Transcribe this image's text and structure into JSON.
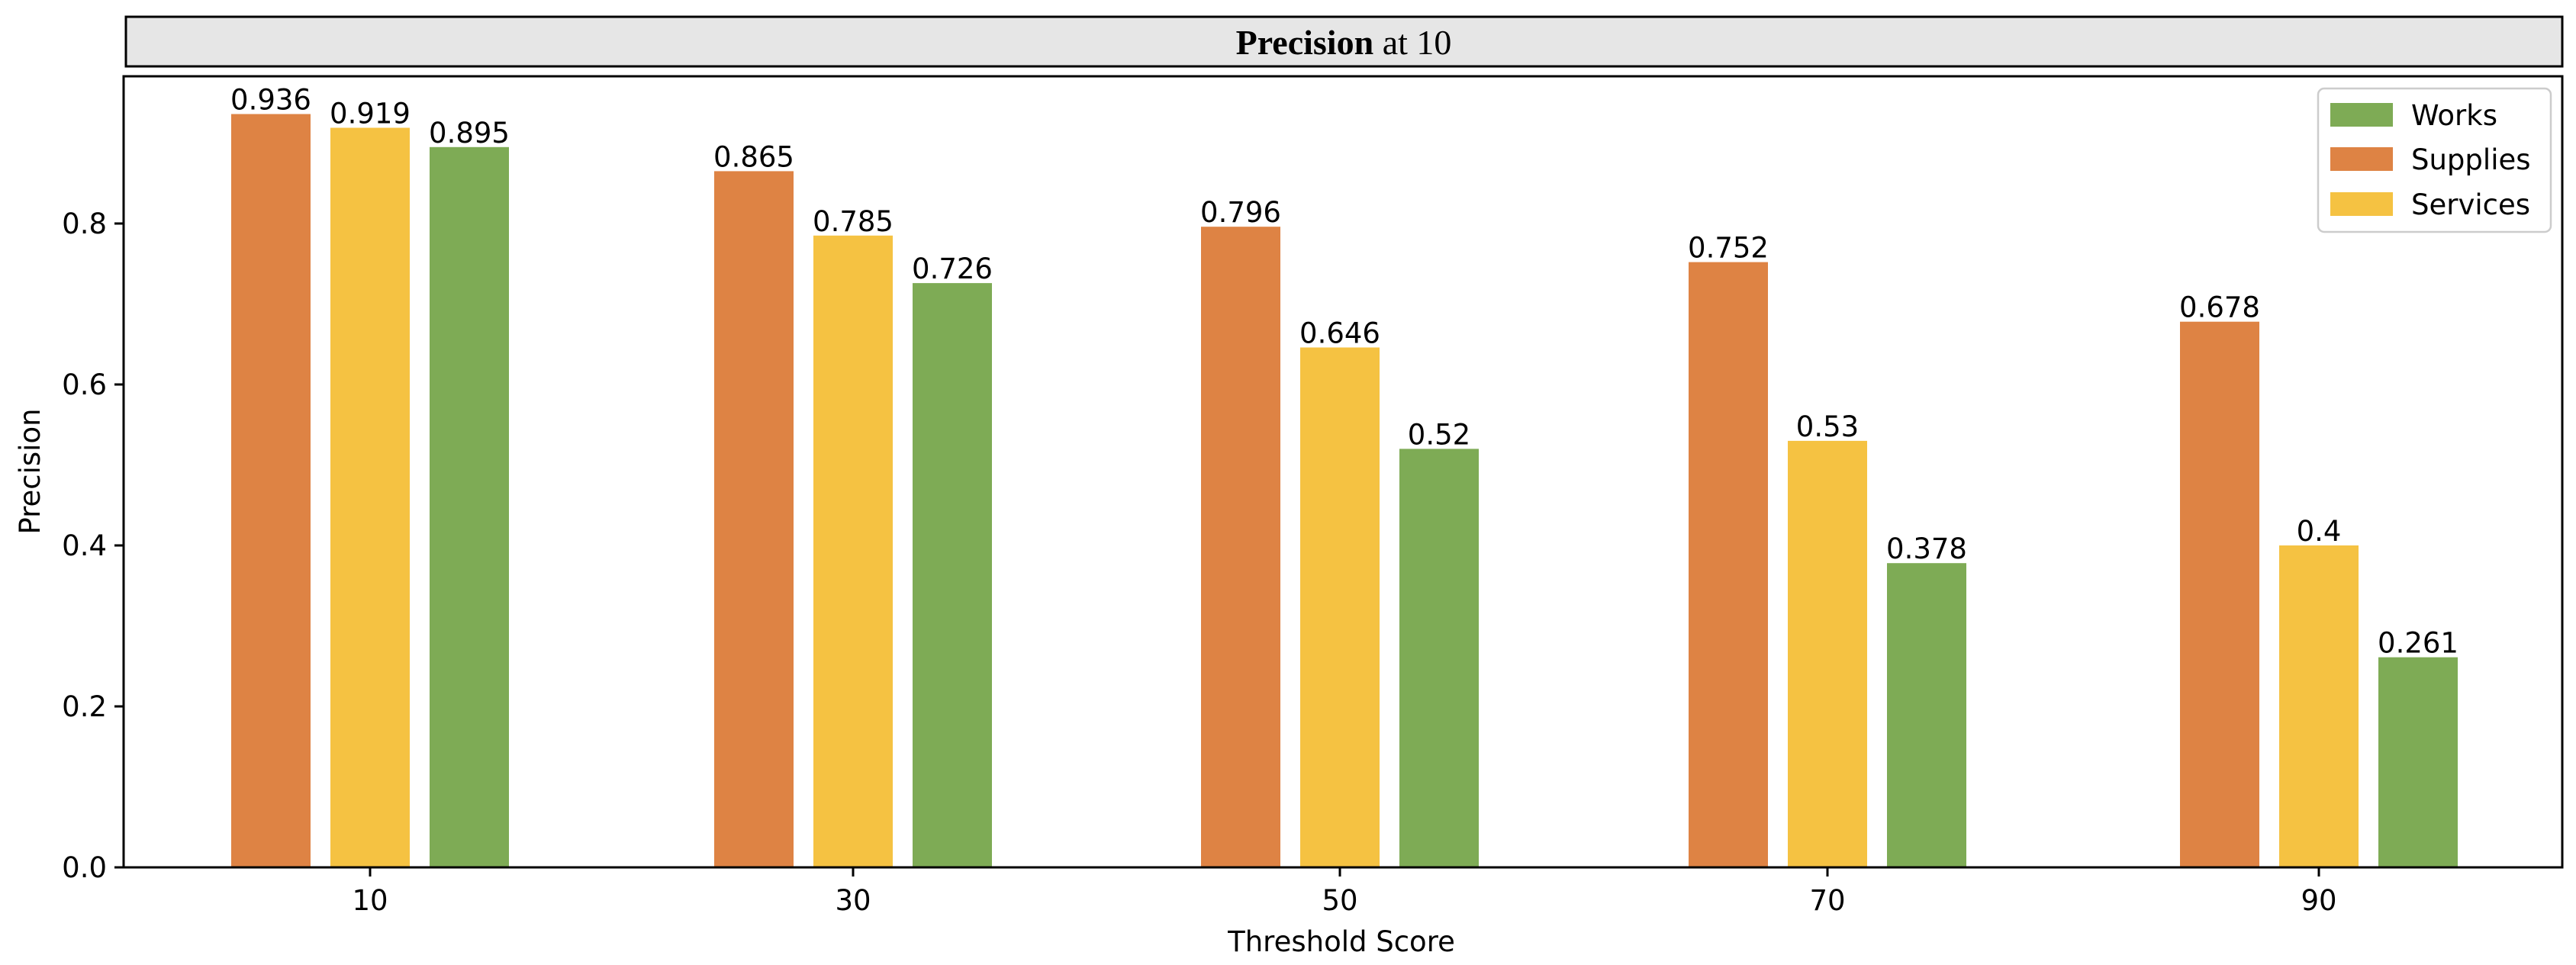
{
  "chart_data": {
    "type": "bar",
    "title_bold": "Precision",
    "title_rest": " at 10",
    "xlabel": "Threshold Score",
    "ylabel": "Precision",
    "categories": [
      "10",
      "30",
      "50",
      "70",
      "90"
    ],
    "ylim": [
      0,
      0.985
    ],
    "yticks": [
      0.0,
      0.2,
      0.4,
      0.6,
      0.8
    ],
    "ytick_labels": [
      "0.0",
      "0.2",
      "0.4",
      "0.6",
      "0.8"
    ],
    "grid": false,
    "legend_position": "top-right",
    "legend_order": [
      "Works",
      "Supplies",
      "Services"
    ],
    "series": [
      {
        "name": "Supplies",
        "color": "#DE8344",
        "values": [
          0.936,
          0.865,
          0.796,
          0.752,
          0.678
        ],
        "labels": [
          "0.936",
          "0.865",
          "0.796",
          "0.752",
          "0.678"
        ]
      },
      {
        "name": "Services",
        "color": "#F5C242",
        "values": [
          0.919,
          0.785,
          0.646,
          0.53,
          0.4
        ],
        "labels": [
          "0.919",
          "0.785",
          "0.646",
          "0.53",
          "0.4"
        ]
      },
      {
        "name": "Works",
        "color": "#7EAB55",
        "values": [
          0.895,
          0.726,
          0.52,
          0.378,
          0.261
        ],
        "labels": [
          "0.895",
          "0.726",
          "0.52",
          "0.378",
          "0.261"
        ]
      }
    ]
  }
}
